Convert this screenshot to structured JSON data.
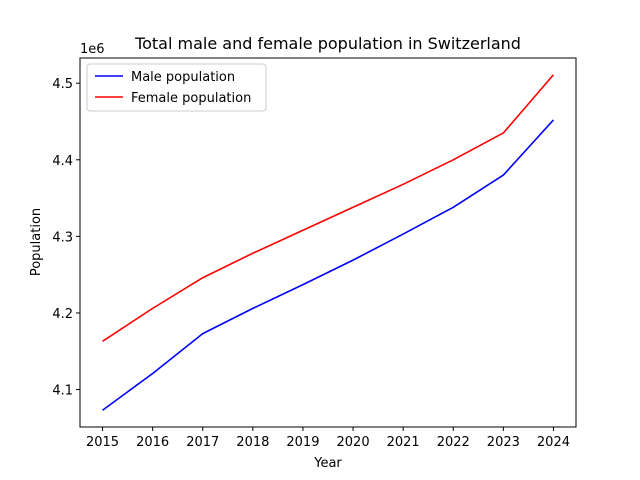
{
  "chart_data": {
    "type": "line",
    "title": "Total male and female population in Switzerland",
    "xlabel": "Year",
    "ylabel": "Population",
    "y_offset_label": "1e6",
    "x": [
      2015,
      2016,
      2017,
      2018,
      2019,
      2020,
      2021,
      2022,
      2023,
      2024
    ],
    "series": [
      {
        "name": "Male population",
        "color": "#0000ff",
        "values": [
          4.073,
          4.121,
          4.173,
          4.206,
          4.237,
          4.269,
          4.303,
          4.338,
          4.38,
          4.452
        ]
      },
      {
        "name": "Female population",
        "color": "#ff0000",
        "values": [
          4.163,
          4.206,
          4.246,
          4.278,
          4.308,
          4.338,
          4.368,
          4.4,
          4.435,
          4.511
        ]
      }
    ],
    "y_unit_multiplier": 1000000,
    "xlim": [
      2014.55,
      2024.45
    ],
    "ylim": [
      4.0511,
      4.5329
    ],
    "yticks": [
      "4.1",
      "4.2",
      "4.3",
      "4.4",
      "4.5"
    ],
    "xticks": [
      "2015",
      "2016",
      "2017",
      "2018",
      "2019",
      "2020",
      "2021",
      "2022",
      "2023",
      "2024"
    ],
    "legend_position": "upper-left",
    "grid": false
  }
}
